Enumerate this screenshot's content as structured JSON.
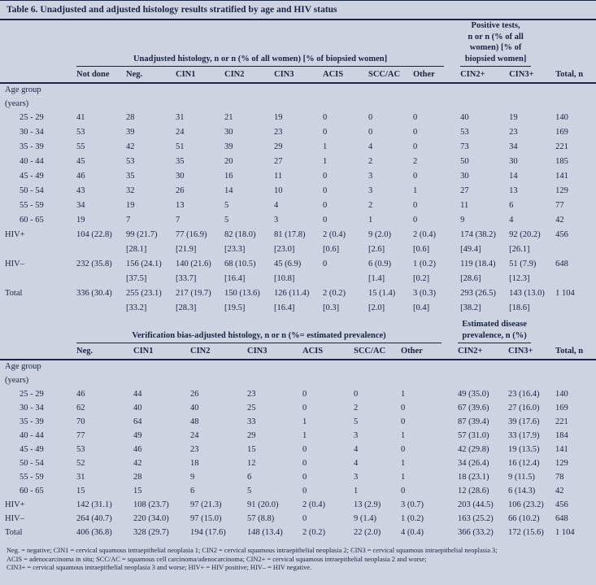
{
  "title": "Table 6. Unadjusted and adjusted histology results stratified by age and HIV status",
  "colors": {
    "background": "#cdd3e0",
    "text": "#1b2440",
    "rule": "#1b2440"
  },
  "table_unadjusted": {
    "span_header": "Unadjusted histology, n or n (% of all women) [% of biopsied women]",
    "positive_tests_header_lines": [
      "Positive tests,",
      "n or n (% of all",
      "women) [% of",
      "biopsied women]"
    ],
    "columns": [
      "Not done",
      "Neg.",
      "CIN1",
      "CIN2",
      "CIN3",
      "ACIS",
      "SCC/AC",
      "Other",
      "CIN2+",
      "CIN3+",
      "Total, n"
    ],
    "section_label_lines": [
      "Age group",
      "(years)"
    ],
    "age_rows": [
      {
        "label": "25 - 29",
        "values": [
          "41",
          "28",
          "31",
          "21",
          "19",
          "0",
          "0",
          "0",
          "40",
          "19",
          "140"
        ]
      },
      {
        "label": "30 - 34",
        "values": [
          "53",
          "39",
          "24",
          "30",
          "23",
          "0",
          "0",
          "0",
          "53",
          "23",
          "169"
        ]
      },
      {
        "label": "35 - 39",
        "values": [
          "55",
          "42",
          "51",
          "39",
          "29",
          "1",
          "4",
          "0",
          "73",
          "34",
          "221"
        ]
      },
      {
        "label": "40 - 44",
        "values": [
          "45",
          "53",
          "35",
          "20",
          "27",
          "1",
          "2",
          "2",
          "50",
          "30",
          "185"
        ]
      },
      {
        "label": "45 - 49",
        "values": [
          "46",
          "35",
          "30",
          "16",
          "11",
          "0",
          "3",
          "0",
          "30",
          "14",
          "141"
        ]
      },
      {
        "label": "50 - 54",
        "values": [
          "43",
          "32",
          "26",
          "14",
          "10",
          "0",
          "3",
          "1",
          "27",
          "13",
          "129"
        ]
      },
      {
        "label": "55 - 59",
        "values": [
          "34",
          "19",
          "13",
          "5",
          "4",
          "0",
          "2",
          "0",
          "11",
          "6",
          "77"
        ]
      },
      {
        "label": "60 - 65",
        "values": [
          "19",
          "7",
          "7",
          "5",
          "3",
          "0",
          "1",
          "0",
          "9",
          "4",
          "42"
        ]
      }
    ],
    "summary_rows": [
      {
        "label": "HIV+",
        "values": [
          "104 (22.8)",
          "99 (21.7)",
          "77 (16.9)",
          "82 (18.0)",
          "81 (17.8)",
          "2 (0.4)",
          "9 (2.0)",
          "2 (0.4)",
          "174 (38.2)",
          "92 (20.2)",
          "456"
        ],
        "bracket_values": [
          "",
          "[28.1]",
          "[21.9]",
          "[23.3]",
          "[23.0]",
          "[0.6]",
          "[2.6]",
          "[0.6]",
          "[49.4]",
          "[26.1]",
          ""
        ]
      },
      {
        "label": "HIV–",
        "values": [
          "232 (35.8)",
          "156 (24.1)",
          "140 (21.6)",
          "68 (10.5)",
          "45 (6.9)",
          "0",
          "6 (0.9)",
          "1 (0.2)",
          "119 (18.4)",
          "51 (7.9)",
          "648"
        ],
        "bracket_values": [
          "",
          "[37.5]",
          "[33.7]",
          "[16.4]",
          "[10.8]",
          "",
          "[1.4]",
          "[0.2]",
          "[28.6]",
          "[12.3]",
          ""
        ]
      },
      {
        "label": "Total",
        "values": [
          "336 (30.4)",
          "255 (23.1)",
          "217 (19.7)",
          "150 (13.6)",
          "126 (11.4)",
          "2 (0.2)",
          "15 (1.4)",
          "3 (0.3)",
          "293 (26.5)",
          "143 (13.0)",
          "1 104"
        ],
        "bracket_values": [
          "",
          "[33.2]",
          "[28.3]",
          "[19.5]",
          "[16.4]",
          "[0.3]",
          "[2.0]",
          "[0.4]",
          "[38.2]",
          "[18.6]",
          ""
        ]
      }
    ]
  },
  "table_adjusted": {
    "span_header": "Verification bias-adjusted histology, n or n (%= estimated prevalence)",
    "prevalence_header_lines": [
      "Estimated disease",
      "prevalence, n (%)"
    ],
    "columns": [
      "Neg.",
      "CIN1",
      "CIN2",
      "CIN3",
      "ACIS",
      "SCC/AC",
      "Other",
      "CIN2+",
      "CIN3+",
      "Total, n"
    ],
    "section_label_lines": [
      "Age group",
      "(years)"
    ],
    "age_rows": [
      {
        "label": "25 - 29",
        "values": [
          "46",
          "44",
          "26",
          "23",
          "0",
          "0",
          "1",
          "49 (35.0)",
          "23 (16.4)",
          "140"
        ]
      },
      {
        "label": "30 - 34",
        "values": [
          "62",
          "40",
          "40",
          "25",
          "0",
          "2",
          "0",
          "67 (39.6)",
          "27 (16.0)",
          "169"
        ]
      },
      {
        "label": "35 - 39",
        "values": [
          "70",
          "64",
          "48",
          "33",
          "1",
          "5",
          "0",
          "87 (39.4)",
          "39 (17.6)",
          "221"
        ]
      },
      {
        "label": "40 - 44",
        "values": [
          "77",
          "49",
          "24",
          "29",
          "1",
          "3",
          "1",
          "57 (31.0)",
          "33 (17.9)",
          "184"
        ]
      },
      {
        "label": "45 - 49",
        "values": [
          "53",
          "46",
          "23",
          "15",
          "0",
          "4",
          "0",
          "42 (29.8)",
          "19 (13.5)",
          "141"
        ]
      },
      {
        "label": "50 - 54",
        "values": [
          "52",
          "42",
          "18",
          "12",
          "0",
          "4",
          "1",
          "34 (26.4)",
          "16 (12.4)",
          "129"
        ]
      },
      {
        "label": "55 - 59",
        "values": [
          "31",
          "28",
          "9",
          "6",
          "0",
          "3",
          "1",
          "18 (23.1)",
          "9 (11.5)",
          "78"
        ]
      },
      {
        "label": "60 - 65",
        "values": [
          "15",
          "15",
          "6",
          "5",
          "0",
          "1",
          "0",
          "12 (28.6)",
          "6 (14.3)",
          "42"
        ]
      }
    ],
    "summary_rows": [
      {
        "label": "HIV+",
        "values": [
          "142 (31.1)",
          "108 (23.7)",
          "97 (21.3)",
          "91 (20.0)",
          "2 (0.4)",
          "13 (2.9)",
          "3 (0.7)",
          "203 (44.5)",
          "106 (23.2)",
          "456"
        ]
      },
      {
        "label": "HIV–",
        "values": [
          "264 (40.7)",
          "220 (34.0)",
          "97 (15.0)",
          "57 (8.8)",
          "0",
          "9 (1.4)",
          "1 (0.2)",
          "163 (25.2)",
          "66 (10.2)",
          "648"
        ]
      },
      {
        "label": "Total",
        "values": [
          "406 (36.8)",
          "328 (29.7)",
          "194 (17.6)",
          "148 (13.4)",
          "2 (0.2)",
          "22 (2.0)",
          "4 (0.4)",
          "366 (33.2)",
          "172 (15.6)",
          "1 104"
        ]
      }
    ]
  },
  "footnote_lines": [
    "Neg. = negative; CIN1 = cervical squamous intraepithelial neoplasia 1; CIN2 = cervical squamous intraepithelial neoplasia 2; CIN3 = cervical squamous intraepithelial neoplasia 3;",
    "ACIS = adenocarcinoma in situ; SCC/AC = squamous cell carcinoma/adenocarcinoma; CIN2+ = cervical squamous intraepithelial neoplasia 2 and worse;",
    "CIN3+ = cervical squamous intraepithelial neoplasia 3 and worse; HIV+ = HIV positive; HIV– = HIV negative."
  ]
}
